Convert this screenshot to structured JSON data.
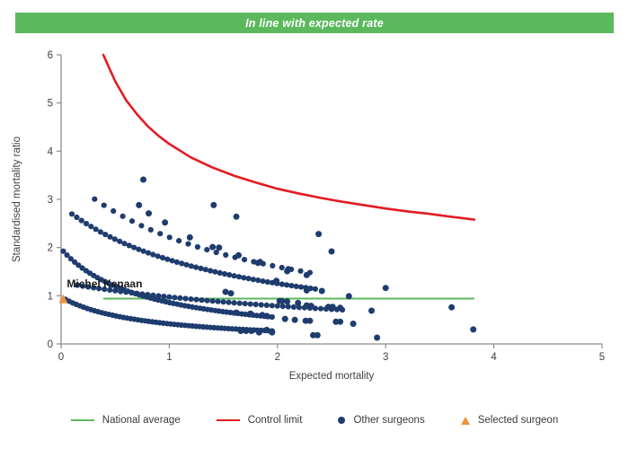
{
  "header": {
    "title": "In line with expected rate",
    "background": "#5cb85c",
    "text_color": "#ffffff"
  },
  "legend": {
    "items": [
      {
        "label": "National average",
        "swatch": "line",
        "color": "#5cb85c"
      },
      {
        "label": "Control limit",
        "swatch": "line",
        "color": "#e31b23"
      },
      {
        "label": "Other surgeons",
        "swatch": "dot",
        "color": "#1e3c6e"
      },
      {
        "label": "Selected surgeon",
        "swatch": "triangle",
        "color": "#f0913c"
      }
    ]
  },
  "chart_data": {
    "type": "scatter",
    "title": "",
    "xlabel": "Expected mortality",
    "ylabel": "Standardised mortality ratio",
    "xlim": [
      0,
      5
    ],
    "ylim": [
      0,
      6
    ],
    "xticks": [
      0,
      1,
      2,
      3,
      4,
      5
    ],
    "yticks": [
      0,
      1,
      2,
      3,
      4,
      5,
      6
    ],
    "grid": false,
    "legend_position": "bottom",
    "axis_color": "#8c8c8c",
    "tick_label_color": "#404040",
    "national_average": {
      "y": 0.94,
      "x_start": 0.39,
      "x_end": 3.82,
      "color": "#5cb85c"
    },
    "control_limit": {
      "color": "#e31b23",
      "points": [
        [
          0.39,
          6.0
        ],
        [
          0.45,
          5.7
        ],
        [
          0.5,
          5.45
        ],
        [
          0.6,
          5.06
        ],
        [
          0.7,
          4.77
        ],
        [
          0.8,
          4.52
        ],
        [
          0.9,
          4.32
        ],
        [
          1.0,
          4.15
        ],
        [
          1.2,
          3.87
        ],
        [
          1.4,
          3.66
        ],
        [
          1.6,
          3.49
        ],
        [
          1.8,
          3.35
        ],
        [
          2.0,
          3.22
        ],
        [
          2.2,
          3.12
        ],
        [
          2.4,
          3.03
        ],
        [
          2.6,
          2.95
        ],
        [
          2.8,
          2.88
        ],
        [
          3.0,
          2.81
        ],
        [
          3.2,
          2.75
        ],
        [
          3.4,
          2.7
        ],
        [
          3.6,
          2.64
        ],
        [
          3.82,
          2.58
        ]
      ]
    },
    "other_surgeons": {
      "color": "#1e3c6e",
      "bands": [
        {
          "a": 0.73,
          "b": 0.75,
          "x_start": 0.04,
          "x_end": 1.95,
          "n": 58
        },
        {
          "a": 1.52,
          "b": 0.77,
          "x_start": 0.02,
          "x_end": 1.95,
          "n": 56
        },
        {
          "a": 4.13,
          "b": 3.24,
          "x_start": 0.15,
          "x_end": 2.6,
          "n": 50
        },
        {
          "a": 4.45,
          "b": 1.55,
          "x_start": 0.1,
          "x_end": 2.35,
          "n": 52
        },
        {
          "a": 5.8,
          "b": 1.62,
          "x_start": 0.31,
          "x_end": 2.3,
          "n": 24
        }
      ],
      "points": [
        [
          0.76,
          3.41
        ],
        [
          1.41,
          2.88
        ],
        [
          1.62,
          2.64
        ],
        [
          0.72,
          2.88
        ],
        [
          0.81,
          2.71
        ],
        [
          0.96,
          2.52
        ],
        [
          1.19,
          2.21
        ],
        [
          1.4,
          2.01
        ],
        [
          1.46,
          2.0
        ],
        [
          1.64,
          1.84
        ],
        [
          1.82,
          1.68
        ],
        [
          2.38,
          2.28
        ],
        [
          2.5,
          1.92
        ],
        [
          2.1,
          1.55
        ],
        [
          2.27,
          1.43
        ],
        [
          1.99,
          1.31
        ],
        [
          1.84,
          1.7
        ],
        [
          2.09,
          1.51
        ],
        [
          2.27,
          1.11
        ],
        [
          2.41,
          1.1
        ],
        [
          3.0,
          1.16
        ],
        [
          2.66,
          0.99
        ],
        [
          2.02,
          0.89
        ],
        [
          2.09,
          0.88
        ],
        [
          2.19,
          0.85
        ],
        [
          2.27,
          0.8
        ],
        [
          2.31,
          0.79
        ],
        [
          2.47,
          0.77
        ],
        [
          2.51,
          0.77
        ],
        [
          2.58,
          0.75
        ],
        [
          2.87,
          0.69
        ],
        [
          1.62,
          0.65
        ],
        [
          1.75,
          0.63
        ],
        [
          1.86,
          0.6
        ],
        [
          2.07,
          0.52
        ],
        [
          2.16,
          0.5
        ],
        [
          2.26,
          0.48
        ],
        [
          2.3,
          0.48
        ],
        [
          2.54,
          0.46
        ],
        [
          2.58,
          0.46
        ],
        [
          2.7,
          0.42
        ],
        [
          1.66,
          0.27
        ],
        [
          1.71,
          0.27
        ],
        [
          1.76,
          0.27
        ],
        [
          1.83,
          0.24
        ],
        [
          1.95,
          0.24
        ],
        [
          2.33,
          0.18
        ],
        [
          2.37,
          0.18
        ],
        [
          2.92,
          0.13
        ],
        [
          3.61,
          0.76
        ],
        [
          3.81,
          0.3
        ],
        [
          2.04,
          0.89
        ],
        [
          1.52,
          1.08
        ],
        [
          1.57,
          1.05
        ],
        [
          1.9,
          0.58
        ],
        [
          1.9,
          0.29
        ]
      ]
    },
    "selected_surgeon": {
      "name": "Michel Kenaan",
      "x": 0.02,
      "y": 0.93,
      "color": "#f0913c",
      "label_color": "#1a1a1a"
    }
  }
}
